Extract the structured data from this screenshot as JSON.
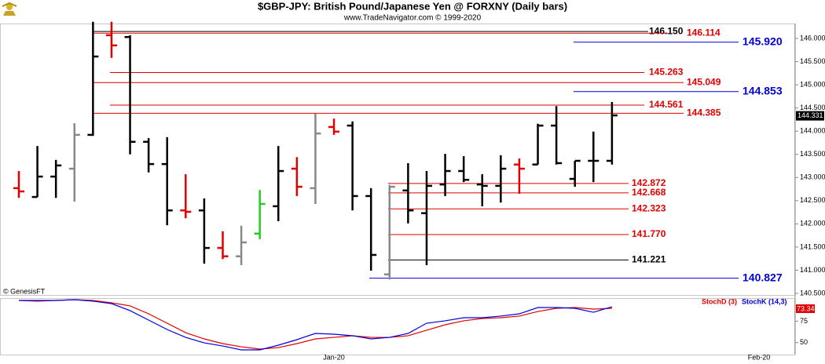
{
  "chart_data": [
    {
      "type": "ohlc",
      "title": "$GBP-JPY:  British Pound/Japanese Yen @ FORXNY  (Daily bars)",
      "subtitle": "www.TradeNavigator.com © 1999-2020",
      "source": "© GenesisFT",
      "x_labels": [
        "Jan-20",
        "Feb-20"
      ],
      "ylim": [
        140.466,
        146.457
      ],
      "yticks": [
        {
          "value": 140.5,
          "label": "140.500"
        },
        {
          "value": 141,
          "label": "141.000"
        },
        {
          "value": 141.5,
          "label": "141.500"
        },
        {
          "value": 142,
          "label": "142.000"
        },
        {
          "value": 142.5,
          "label": "142.500"
        },
        {
          "value": 143,
          "label": "143.000"
        },
        {
          "value": 143.5,
          "label": "143.500"
        },
        {
          "value": 144,
          "label": "144.000"
        },
        {
          "value": 144.5,
          "label": "144.500"
        },
        {
          "value": 145,
          "label": "145.000"
        },
        {
          "value": 145.5,
          "label": "145.500"
        },
        {
          "value": 146,
          "label": "146.000"
        }
      ],
      "open": [
        142.77,
        142.58,
        143.02,
        143.19,
        143.92,
        146.07,
        146.03,
        143.77,
        143.29,
        142.29,
        142.29,
        141.48,
        141.3,
        141.79,
        142.38,
        143.19,
        142.77,
        144.09,
        144.12,
        142.6,
        140.91,
        142.72,
        142.23,
        142.85,
        143.14,
        142.85,
        142.82,
        143.28,
        143.28,
        144.12,
        142.97,
        143.36,
        143.36
      ],
      "high": [
        143.14,
        143.68,
        143.38,
        144.17,
        146.36,
        146.36,
        146.07,
        143.85,
        143.87,
        143.07,
        142.55,
        141.84,
        141.96,
        142.73,
        143.68,
        143.44,
        144.38,
        144.27,
        144.21,
        142.77,
        142.84,
        143.31,
        143.14,
        143.51,
        143.46,
        143.07,
        143.48,
        143.41,
        144.16,
        144.54,
        143.36,
        143.99,
        144.63
      ],
      "low": [
        142.56,
        142.58,
        142.56,
        142.48,
        143.9,
        145.58,
        143.5,
        143.11,
        141.97,
        142.12,
        141.14,
        141.24,
        141.11,
        141.67,
        142.06,
        142.6,
        142.43,
        143.92,
        142.29,
        140.99,
        140.8,
        142.01,
        141.11,
        142.6,
        142.9,
        142.38,
        142.46,
        142.65,
        143.28,
        143.28,
        142.8,
        142.9,
        143.28
      ],
      "close": [
        142.7,
        143.02,
        143.26,
        143.92,
        145.61,
        145.85,
        143.77,
        143.29,
        142.29,
        142.26,
        141.48,
        141.3,
        141.6,
        142.43,
        143.14,
        142.8,
        143.95,
        143.99,
        142.6,
        141.33,
        142.8,
        142.29,
        142.82,
        143.14,
        142.95,
        142.82,
        143.19,
        143.19,
        144.12,
        143.31,
        143.36,
        143.36,
        144.34
      ],
      "colors": [
        "#e00000",
        "#000000",
        "#000000",
        "#888888",
        "#000000",
        "#e00000",
        "#000000",
        "#000000",
        "#000000",
        "#e00000",
        "#000000",
        "#e00000",
        "#888888",
        "#22cc22",
        "#000000",
        "#e00000",
        "#888888",
        "#e00000",
        "#000000",
        "#000000",
        "#888888",
        "#000000",
        "#000000",
        "#000000",
        "#000000",
        "#000000",
        "#000000",
        "#e00000",
        "#000000",
        "#000000",
        "#000000",
        "#000000",
        "#000000"
      ],
      "last_price": {
        "value": 144.331,
        "label": "144.331"
      },
      "levels": [
        {
          "value": 146.15,
          "label": "146.150",
          "color": "#000000"
        },
        {
          "value": 146.114,
          "label": "146.114",
          "color": "#e00000"
        },
        {
          "value": 145.92,
          "label": "145.920",
          "color": "#0000dd"
        },
        {
          "value": 145.263,
          "label": "145.263",
          "color": "#e00000"
        },
        {
          "value": 145.049,
          "label": "145.049",
          "color": "#e00000"
        },
        {
          "value": 144.853,
          "label": "144.853",
          "color": "#0000dd"
        },
        {
          "value": 144.561,
          "label": "144.561",
          "color": "#e00000"
        },
        {
          "value": 144.385,
          "label": "144.385",
          "color": "#e00000"
        },
        {
          "value": 142.872,
          "label": "142.872",
          "color": "#e00000"
        },
        {
          "value": 142.668,
          "label": "142.668",
          "color": "#e00000"
        },
        {
          "value": 142.323,
          "label": "142.323",
          "color": "#e00000"
        },
        {
          "value": 141.77,
          "label": "141.770",
          "color": "#e00000"
        },
        {
          "value": 141.221,
          "label": "141.221",
          "color": "#000000"
        },
        {
          "value": 140.827,
          "label": "140.827",
          "color": "#0000dd"
        }
      ]
    },
    {
      "type": "line",
      "ylim": [
        36,
        101
      ],
      "yticks": [
        50,
        75
      ],
      "last_label": "73.34",
      "series": [
        {
          "name": "StochD (3)",
          "color": "#e00000",
          "values": [
            99.2,
            98.3,
            99.2,
            100.1,
            99.2,
            96.4,
            92.8,
            83.6,
            72.6,
            61.6,
            54.3,
            48.8,
            45.1,
            42.4,
            44.2,
            48.8,
            54.3,
            56.1,
            58.0,
            56.1,
            56.1,
            58.0,
            64.4,
            70.8,
            75.4,
            78.1,
            79.0,
            80.9,
            86.3,
            90.0,
            90.9,
            89.1,
            90.0
          ]
        },
        {
          "name": "StochK (14,3)",
          "color": "#0000dd",
          "values": [
            99.2,
            99.2,
            99.2,
            100.1,
            98.3,
            95.5,
            87.3,
            76.3,
            65.3,
            56.1,
            49.7,
            46.0,
            41.5,
            41.5,
            47.0,
            53.4,
            60.7,
            59.8,
            58.0,
            54.3,
            56.1,
            60.7,
            72.6,
            75.4,
            79.0,
            79.0,
            80.9,
            83.6,
            90.9,
            90.9,
            90.0,
            85.4,
            91.8
          ]
        }
      ]
    }
  ]
}
